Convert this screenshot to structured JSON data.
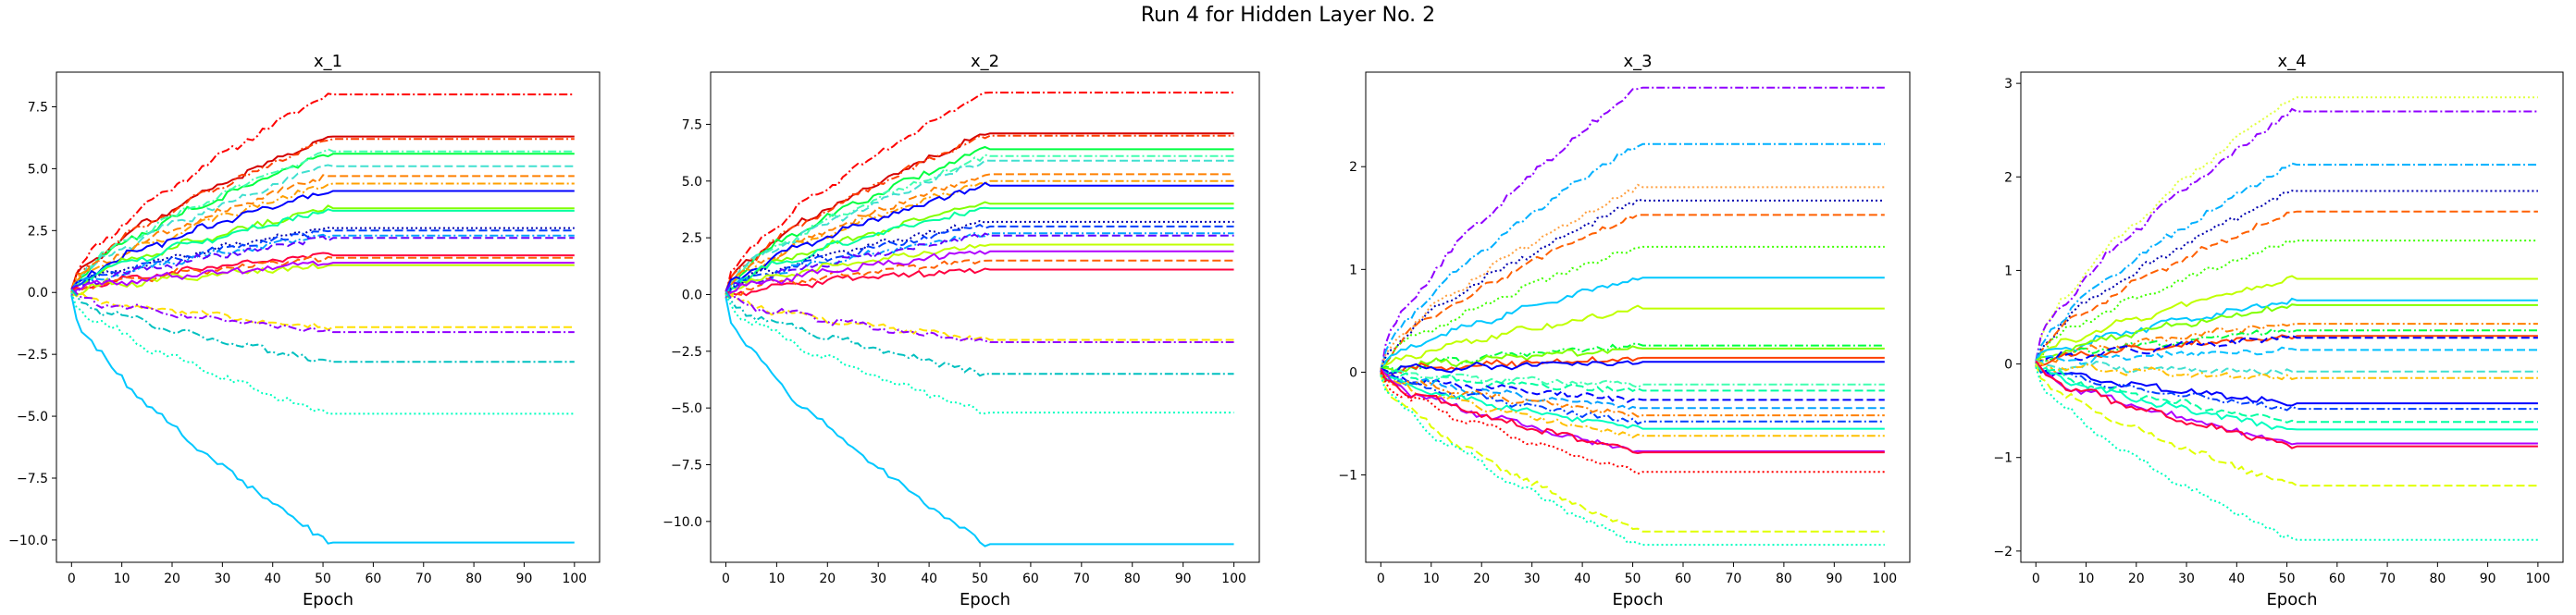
{
  "title": "Run 4 for Hidden Layer No. 2",
  "xlabel_common": "Epoch",
  "chart_data": [
    {
      "type": "line",
      "title": "x_1",
      "xlabel": "Epoch",
      "xlim": [
        -3,
        105
      ],
      "ylim": [
        -10.9,
        8.9
      ],
      "xticks": [
        0,
        10,
        20,
        30,
        40,
        50,
        60,
        70,
        80,
        90,
        100
      ],
      "yticks": [
        -10.0,
        -7.5,
        -5.0,
        -2.5,
        0.0,
        2.5,
        5.0,
        7.5
      ],
      "yticklabels": [
        "−10.0",
        "−7.5",
        "−5.0",
        "−2.5",
        "0.0",
        "2.5",
        "5.0",
        "7.5"
      ],
      "grid": false,
      "series": [
        {
          "color": "#ff0000",
          "dash": "dashdot",
          "final": 8.0
        },
        {
          "color": "#d40000",
          "dash": "solid",
          "final": 6.3
        },
        {
          "color": "#ff4000",
          "dash": "dashdot",
          "final": 6.2
        },
        {
          "color": "#00ff40",
          "dash": "solid",
          "final": 5.6
        },
        {
          "color": "#40ffb0",
          "dash": "dashdot",
          "final": 5.7
        },
        {
          "color": "#40e0d0",
          "dash": "dashed",
          "final": 5.1
        },
        {
          "color": "#ff8000",
          "dash": "dashed",
          "final": 4.7
        },
        {
          "color": "#ffa000",
          "dash": "dashdot",
          "final": 4.4
        },
        {
          "color": "#0000ff",
          "dash": "solid",
          "final": 4.1
        },
        {
          "color": "#80ff00",
          "dash": "solid",
          "final": 3.4
        },
        {
          "color": "#00ffa0",
          "dash": "solid",
          "final": 3.3
        },
        {
          "color": "#0000b0",
          "dash": "dotted",
          "final": 2.6
        },
        {
          "color": "#0040ff",
          "dash": "dashed",
          "final": 2.5
        },
        {
          "color": "#00a0ff",
          "dash": "dashdot",
          "final": 2.3
        },
        {
          "color": "#6000ff",
          "dash": "dashed",
          "final": 2.2
        },
        {
          "color": "#ff0040",
          "dash": "solid",
          "final": 1.5
        },
        {
          "color": "#ff6000",
          "dash": "dashed",
          "final": 1.4
        },
        {
          "color": "#c0ff00",
          "dash": "solid",
          "final": 1.1
        },
        {
          "color": "#b000ff",
          "dash": "solid",
          "final": 1.2
        },
        {
          "color": "#ffe000",
          "dash": "dashed",
          "final": -1.4
        },
        {
          "color": "#9000ff",
          "dash": "dashdot",
          "final": -1.6
        },
        {
          "color": "#00c0c0",
          "dash": "dashdot",
          "final": -2.8
        },
        {
          "color": "#00ffc0",
          "dash": "dotted",
          "final": -4.9
        },
        {
          "color": "#00c8ff",
          "dash": "solid",
          "final": -10.1
        }
      ]
    },
    {
      "type": "line",
      "title": "x_2",
      "xlabel": "Epoch",
      "xlim": [
        -3,
        105
      ],
      "ylim": [
        -11.8,
        9.8
      ],
      "xticks": [
        0,
        10,
        20,
        30,
        40,
        50,
        60,
        70,
        80,
        90,
        100
      ],
      "yticks": [
        -10.0,
        -7.5,
        -5.0,
        -2.5,
        0.0,
        2.5,
        5.0,
        7.5
      ],
      "yticklabels": [
        "−10.0",
        "−7.5",
        "−5.0",
        "−2.5",
        "0.0",
        "2.5",
        "5.0",
        "7.5"
      ],
      "grid": false,
      "series": [
        {
          "color": "#ff0000",
          "dash": "dashdot",
          "final": 8.9
        },
        {
          "color": "#d40000",
          "dash": "solid",
          "final": 7.1
        },
        {
          "color": "#ff4000",
          "dash": "dashdot",
          "final": 7.0
        },
        {
          "color": "#00ff40",
          "dash": "solid",
          "final": 6.4
        },
        {
          "color": "#40ffb0",
          "dash": "dashdot",
          "final": 6.1
        },
        {
          "color": "#40e0d0",
          "dash": "dashed",
          "final": 5.9
        },
        {
          "color": "#ff8000",
          "dash": "dashed",
          "final": 5.3
        },
        {
          "color": "#ffa000",
          "dash": "dashdot",
          "final": 5.0
        },
        {
          "color": "#0000ff",
          "dash": "solid",
          "final": 4.8
        },
        {
          "color": "#80ff00",
          "dash": "solid",
          "final": 4.0
        },
        {
          "color": "#00ffa0",
          "dash": "solid",
          "final": 3.8
        },
        {
          "color": "#0000b0",
          "dash": "dotted",
          "final": 3.2
        },
        {
          "color": "#0040ff",
          "dash": "dashed",
          "final": 3.0
        },
        {
          "color": "#00a0ff",
          "dash": "dashdot",
          "final": 2.7
        },
        {
          "color": "#6000ff",
          "dash": "dashed",
          "final": 2.6
        },
        {
          "color": "#ff0040",
          "dash": "solid",
          "final": 1.1
        },
        {
          "color": "#ff6000",
          "dash": "dashed",
          "final": 1.5
        },
        {
          "color": "#c0ff00",
          "dash": "solid",
          "final": 2.2
        },
        {
          "color": "#b000ff",
          "dash": "solid",
          "final": 1.9
        },
        {
          "color": "#ffe000",
          "dash": "dashed",
          "final": -2.0
        },
        {
          "color": "#9000ff",
          "dash": "dashdot",
          "final": -2.1
        },
        {
          "color": "#00c0c0",
          "dash": "dashdot",
          "final": -3.5
        },
        {
          "color": "#00ffc0",
          "dash": "dotted",
          "final": -5.2
        },
        {
          "color": "#00c8ff",
          "dash": "solid",
          "final": -11.0
        }
      ]
    },
    {
      "type": "line",
      "title": "x_3",
      "xlabel": "Epoch",
      "xlim": [
        -3,
        105
      ],
      "ylim": [
        -1.85,
        2.92
      ],
      "xticks": [
        0,
        10,
        20,
        30,
        40,
        50,
        60,
        70,
        80,
        90,
        100
      ],
      "yticks": [
        -1,
        0,
        1,
        2
      ],
      "yticklabels": [
        "−1",
        "0",
        "1",
        "2"
      ],
      "grid": false,
      "series": [
        {
          "color": "#9000ff",
          "dash": "dashdot",
          "final": 2.77
        },
        {
          "color": "#00b0ff",
          "dash": "dashdot",
          "final": 2.22
        },
        {
          "color": "#ffa040",
          "dash": "dotted",
          "final": 1.8
        },
        {
          "color": "#0000b0",
          "dash": "dotted",
          "final": 1.67
        },
        {
          "color": "#ff6000",
          "dash": "dashed",
          "final": 1.53
        },
        {
          "color": "#40ff00",
          "dash": "dotted",
          "final": 1.22
        },
        {
          "color": "#00c8ff",
          "dash": "solid",
          "final": 0.92
        },
        {
          "color": "#c0ff00",
          "dash": "solid",
          "final": 0.62
        },
        {
          "color": "#00ff40",
          "dash": "dashdot",
          "final": 0.26
        },
        {
          "color": "#80ff00",
          "dash": "solid",
          "final": 0.23
        },
        {
          "color": "#ff4000",
          "dash": "solid",
          "final": 0.14
        },
        {
          "color": "#0000ff",
          "dash": "solid",
          "final": 0.1
        },
        {
          "color": "#40ffb0",
          "dash": "dashdot",
          "final": -0.12
        },
        {
          "color": "#00ffa0",
          "dash": "dashed",
          "final": -0.18
        },
        {
          "color": "#0000ff",
          "dash": "dashed",
          "final": -0.27
        },
        {
          "color": "#00a0ff",
          "dash": "dashed",
          "final": -0.35
        },
        {
          "color": "#ff8000",
          "dash": "dashdot",
          "final": -0.42
        },
        {
          "color": "#0040ff",
          "dash": "dashdot",
          "final": -0.48
        },
        {
          "color": "#00ffc0",
          "dash": "solid",
          "final": -0.55
        },
        {
          "color": "#ffc000",
          "dash": "dashdot",
          "final": -0.62
        },
        {
          "color": "#b000ff",
          "dash": "solid",
          "final": -0.77
        },
        {
          "color": "#ff0040",
          "dash": "solid",
          "final": -0.78
        },
        {
          "color": "#ff0000",
          "dash": "dotted",
          "final": -0.97
        },
        {
          "color": "#e0ff00",
          "dash": "dashed",
          "final": -1.55
        },
        {
          "color": "#00ffc0",
          "dash": "dotted",
          "final": -1.68
        }
      ]
    },
    {
      "type": "line",
      "title": "x_4",
      "xlabel": "Epoch",
      "xlim": [
        -3,
        105
      ],
      "ylim": [
        -2.12,
        3.12
      ],
      "xticks": [
        0,
        10,
        20,
        30,
        40,
        50,
        60,
        70,
        80,
        90,
        100
      ],
      "yticks": [
        -2,
        -1,
        0,
        1,
        2,
        3
      ],
      "yticklabels": [
        "−2",
        "−1",
        "0",
        "1",
        "2",
        "3"
      ],
      "grid": false,
      "series": [
        {
          "color": "#e0ff40",
          "dash": "dotted",
          "final": 2.85
        },
        {
          "color": "#9000ff",
          "dash": "dashdot",
          "final": 2.7
        },
        {
          "color": "#00b0ff",
          "dash": "dashdot",
          "final": 2.13
        },
        {
          "color": "#0000b0",
          "dash": "dotted",
          "final": 1.85
        },
        {
          "color": "#ff6000",
          "dash": "dashed",
          "final": 1.63
        },
        {
          "color": "#40ff00",
          "dash": "dotted",
          "final": 1.32
        },
        {
          "color": "#c0ff00",
          "dash": "solid",
          "final": 0.91
        },
        {
          "color": "#00c8ff",
          "dash": "solid",
          "final": 0.68
        },
        {
          "color": "#80ff00",
          "dash": "solid",
          "final": 0.63
        },
        {
          "color": "#ff8000",
          "dash": "dashdot",
          "final": 0.43
        },
        {
          "color": "#00ff40",
          "dash": "dashdot",
          "final": 0.36
        },
        {
          "color": "#ff4000",
          "dash": "solid",
          "final": 0.3
        },
        {
          "color": "#0000ff",
          "dash": "dashed",
          "final": 0.28
        },
        {
          "color": "#00c0ff",
          "dash": "dashed",
          "final": 0.15
        },
        {
          "color": "#40e0d0",
          "dash": "dashed",
          "final": -0.08
        },
        {
          "color": "#ffc000",
          "dash": "dashdot",
          "final": -0.15
        },
        {
          "color": "#0000ff",
          "dash": "solid",
          "final": -0.42
        },
        {
          "color": "#0040ff",
          "dash": "dashdot",
          "final": -0.48
        },
        {
          "color": "#00ffa0",
          "dash": "dashed",
          "final": -0.62
        },
        {
          "color": "#00ffc0",
          "dash": "solid",
          "final": -0.7
        },
        {
          "color": "#b000ff",
          "dash": "solid",
          "final": -0.85
        },
        {
          "color": "#ff0040",
          "dash": "solid",
          "final": -0.88
        },
        {
          "color": "#e0ff00",
          "dash": "dashed",
          "final": -1.3
        },
        {
          "color": "#00ffc0",
          "dash": "dotted",
          "final": -1.88
        }
      ]
    }
  ]
}
